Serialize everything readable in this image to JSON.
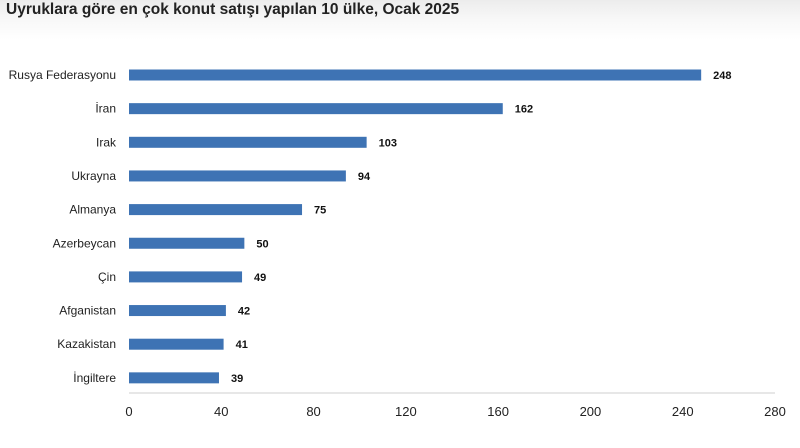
{
  "chart_data": {
    "type": "bar",
    "orientation": "horizontal",
    "title": "Uyruklara göre en çok konut satışı yapılan 10 ülke, Ocak 2025",
    "categories": [
      "Rusya Federasyonu",
      "İran",
      "Irak",
      "Ukrayna",
      "Almanya",
      "Azerbeycan",
      "Çin",
      "Afganistan",
      "Kazakistan",
      "İngiltere"
    ],
    "values": [
      248,
      162,
      103,
      94,
      75,
      50,
      49,
      42,
      41,
      39
    ],
    "xlim": [
      0,
      280
    ],
    "xticks": [
      0,
      40,
      80,
      120,
      160,
      200,
      240,
      280
    ],
    "xlabel": "",
    "ylabel": "",
    "grid": false,
    "legend": "none",
    "bar_color": "#3e73b4"
  }
}
